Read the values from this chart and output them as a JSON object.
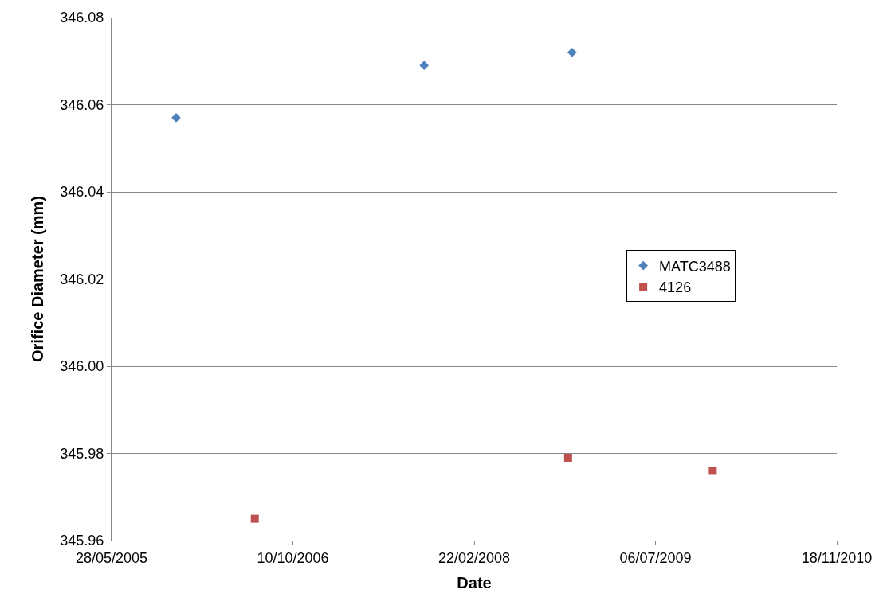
{
  "chart_data": {
    "type": "scatter",
    "xlabel": "Date",
    "ylabel": "Orifice Diameter (mm)",
    "series": [
      {
        "name": "MATC3488",
        "color": "#4f81bd",
        "marker": "diamond",
        "x": [
          "2005-11-22",
          "2007-10-07",
          "2008-11-18"
        ],
        "values": [
          346.057,
          346.069,
          346.072
        ]
      },
      {
        "name": "4126",
        "color": "#c0504d",
        "marker": "square",
        "x": [
          "2006-06-27",
          "2008-11-07",
          "2009-12-11"
        ],
        "values": [
          345.965,
          345.979,
          345.976
        ]
      }
    ],
    "xlim": [
      "2005-05-28",
      "2010-11-18"
    ],
    "xticks": [
      {
        "value": "2005-05-28",
        "label": "28/05/2005"
      },
      {
        "value": "2006-10-10",
        "label": "10/10/2006"
      },
      {
        "value": "2008-02-22",
        "label": "22/02/2008"
      },
      {
        "value": "2009-07-06",
        "label": "06/07/2009"
      },
      {
        "value": "2010-11-18",
        "label": "18/11/2010"
      }
    ],
    "ylim": [
      345.96,
      346.08
    ],
    "yticks": [
      {
        "value": 345.96,
        "label": "345.96"
      },
      {
        "value": 345.98,
        "label": "345.98"
      },
      {
        "value": 346.0,
        "label": "346.00"
      },
      {
        "value": 346.02,
        "label": "346.02"
      },
      {
        "value": 346.04,
        "label": "346.04"
      },
      {
        "value": 346.06,
        "label": "346.06"
      },
      {
        "value": 346.08,
        "label": "346.08"
      }
    ],
    "grid": "y",
    "legend": "right"
  }
}
